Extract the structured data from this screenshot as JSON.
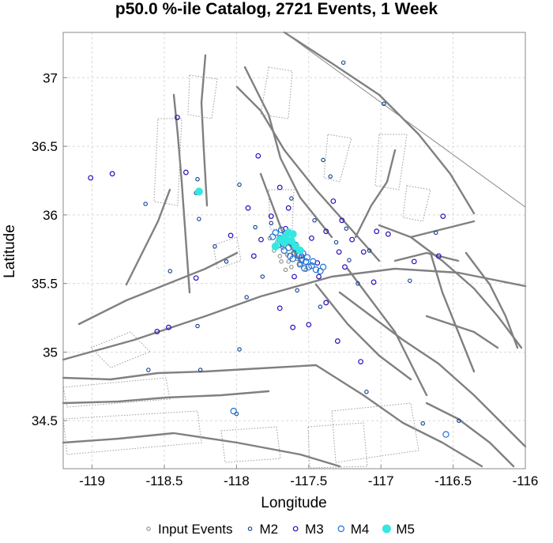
{
  "chart_data": {
    "type": "scatter",
    "title": "p50.0 %-ile Catalog, 2721 Events, 1 Week",
    "xlabel": "Longitude",
    "ylabel": "Latitude",
    "xlim": [
      -119.2,
      -116.0
    ],
    "ylim": [
      34.15,
      37.33
    ],
    "xticks": [
      -119,
      -118.5,
      -118,
      -117.5,
      -117,
      -116.5,
      -116
    ],
    "xtick_labels": [
      "-119",
      "-118.5",
      "-118",
      "-117.5",
      "-117",
      "-116.5",
      "-116"
    ],
    "yticks": [
      34.5,
      35,
      35.5,
      36,
      36.5,
      37
    ],
    "ytick_labels": [
      "34.5",
      "35",
      "35.5",
      "36",
      "36.5",
      "37"
    ],
    "grid": true,
    "legend_position": "bottom",
    "series": [
      {
        "name": "Input Events",
        "color": "#808080",
        "points": [
          [
            -117.7,
            35.7
          ],
          [
            -117.64,
            35.66
          ],
          [
            -117.6,
            35.72
          ],
          [
            -117.68,
            35.76
          ],
          [
            -117.62,
            35.62
          ],
          [
            -117.56,
            35.64
          ],
          [
            -117.72,
            35.8
          ],
          [
            -117.66,
            35.6
          ],
          [
            -117.58,
            35.68
          ],
          [
            -117.74,
            35.74
          ],
          [
            -117.63,
            35.79
          ],
          [
            -117.69,
            35.66
          ],
          [
            -117.52,
            35.6
          ],
          [
            -117.77,
            35.83
          ],
          [
            -117.65,
            35.71
          ]
        ]
      },
      {
        "name": "M2",
        "color": "#0c3f8e",
        "points": [
          [
            -118.27,
            36.26
          ],
          [
            -118.28,
            36.16
          ],
          [
            -118.46,
            35.59
          ],
          [
            -118.63,
            36.08
          ],
          [
            -118.27,
            35.19
          ],
          [
            -118.25,
            34.87
          ],
          [
            -118.61,
            34.87
          ],
          [
            -117.98,
            36.22
          ],
          [
            -117.98,
            35.02
          ],
          [
            -118.07,
            35.66
          ],
          [
            -117.87,
            35.91
          ],
          [
            -117.76,
            35.94
          ],
          [
            -117.31,
            35.8
          ],
          [
            -117.4,
            36.4
          ],
          [
            -117.58,
            35.45
          ],
          [
            -117.42,
            35.33
          ],
          [
            -117.35,
            36.28
          ],
          [
            -117.08,
            35.74
          ],
          [
            -116.62,
            35.87
          ],
          [
            -116.8,
            35.52
          ],
          [
            -116.71,
            34.48
          ],
          [
            -116.46,
            34.5
          ],
          [
            -117.1,
            34.71
          ],
          [
            -116.98,
            36.81
          ],
          [
            -117.26,
            37.11
          ],
          [
            -117.16,
            35.5
          ],
          [
            -117.24,
            35.9
          ],
          [
            -118.15,
            35.77
          ],
          [
            -117.93,
            35.4
          ],
          [
            -117.22,
            35.67
          ],
          [
            -117.46,
            35.96
          ],
          [
            -117.62,
            36.12
          ],
          [
            -117.82,
            35.55
          ],
          [
            -118.0,
            34.55
          ],
          [
            -118.26,
            35.97
          ]
        ]
      },
      {
        "name": "M3",
        "color": "#2a0fb8",
        "points": [
          [
            -119.01,
            36.27
          ],
          [
            -118.86,
            36.3
          ],
          [
            -118.35,
            36.31
          ],
          [
            -118.41,
            36.71
          ],
          [
            -118.55,
            35.15
          ],
          [
            -118.47,
            35.18
          ],
          [
            -117.85,
            36.43
          ],
          [
            -117.7,
            35.32
          ],
          [
            -117.61,
            35.18
          ],
          [
            -117.38,
            35.36
          ],
          [
            -117.3,
            35.08
          ],
          [
            -117.14,
            34.93
          ],
          [
            -117.05,
            35.51
          ],
          [
            -116.77,
            35.66
          ],
          [
            -116.57,
            35.99
          ],
          [
            -117.33,
            36.1
          ],
          [
            -117.03,
            35.88
          ],
          [
            -118.28,
            35.54
          ],
          [
            -117.92,
            36.05
          ],
          [
            -117.43,
            35.55
          ],
          [
            -117.7,
            36.2
          ],
          [
            -117.25,
            35.62
          ],
          [
            -117.5,
            35.2
          ],
          [
            -116.6,
            35.7
          ],
          [
            -118.04,
            35.85
          ],
          [
            -117.27,
            35.96
          ],
          [
            -116.95,
            35.86
          ],
          [
            -117.64,
            36.05
          ],
          [
            -117.12,
            35.73
          ],
          [
            -117.83,
            35.82
          ],
          [
            -117.48,
            35.83
          ],
          [
            -117.76,
            35.99
          ],
          [
            -117.38,
            35.88
          ],
          [
            -117.55,
            35.7
          ],
          [
            -117.66,
            35.9
          ],
          [
            -117.29,
            35.73
          ],
          [
            -117.44,
            35.65
          ],
          [
            -117.88,
            35.7
          ],
          [
            -117.2,
            35.82
          ],
          [
            -117.6,
            35.55
          ]
        ]
      },
      {
        "name": "M4",
        "color": "#1f73d6",
        "points": [
          [
            -118.02,
            34.57
          ],
          [
            -116.55,
            34.4
          ],
          [
            -117.68,
            35.79
          ],
          [
            -117.6,
            35.72
          ],
          [
            -117.55,
            35.67
          ],
          [
            -117.5,
            35.62
          ],
          [
            -117.64,
            35.76
          ],
          [
            -117.57,
            35.7
          ],
          [
            -117.52,
            35.66
          ],
          [
            -117.48,
            35.63
          ],
          [
            -117.7,
            35.83
          ],
          [
            -117.62,
            35.8
          ],
          [
            -117.45,
            35.6
          ],
          [
            -117.66,
            35.86
          ],
          [
            -117.58,
            35.75
          ],
          [
            -117.54,
            35.72
          ],
          [
            -117.73,
            35.87
          ],
          [
            -117.47,
            35.66
          ],
          [
            -117.61,
            35.68
          ],
          [
            -117.67,
            35.74
          ],
          [
            -117.56,
            35.64
          ],
          [
            -117.42,
            35.59
          ],
          [
            -117.69,
            35.89
          ],
          [
            -117.53,
            35.61
          ],
          [
            -117.59,
            35.78
          ],
          [
            -117.63,
            35.7
          ],
          [
            -117.75,
            35.84
          ],
          [
            -117.4,
            35.62
          ],
          [
            -117.51,
            35.69
          ],
          [
            -117.71,
            35.78
          ]
        ]
      },
      {
        "name": "M5",
        "color": "#33e8e0",
        "points": [
          [
            -118.26,
            36.17
          ],
          [
            -117.73,
            35.77
          ],
          [
            -117.66,
            35.84
          ],
          [
            -117.62,
            35.81
          ],
          [
            -117.59,
            35.77
          ],
          [
            -117.64,
            35.87
          ],
          [
            -117.7,
            35.82
          ],
          [
            -117.56,
            35.74
          ],
          [
            -117.61,
            35.86
          ],
          [
            -117.67,
            35.8
          ]
        ]
      }
    ]
  }
}
